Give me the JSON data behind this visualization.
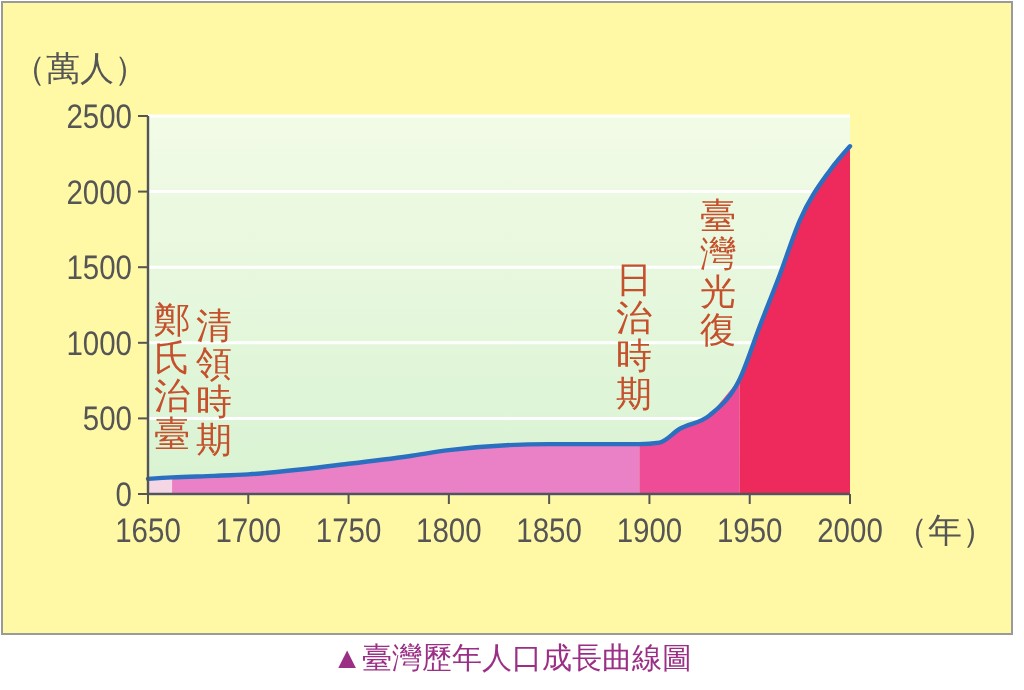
{
  "chart_data": {
    "type": "area",
    "title": "▲臺灣歷年人口成長曲線圖",
    "xlabel": "（年）",
    "ylabel": "（萬人）",
    "xlim": [
      1650,
      2000
    ],
    "xticks": [
      1650,
      1700,
      1750,
      1800,
      1850,
      1900,
      1950,
      2000
    ],
    "ylim": [
      0,
      2500
    ],
    "yticks": [
      0,
      500,
      1000,
      1500,
      2000,
      2500
    ],
    "grid": "y",
    "series": [
      {
        "color": "#f4d6e4",
        "x": [
          1650,
          1662
        ],
        "values": [
          100,
          110
        ]
      },
      {
        "color": "#ea80c6",
        "x": [
          1662,
          1683,
          1700,
          1750,
          1780,
          1800,
          1850,
          1895
        ],
        "values": [
          110,
          120,
          130,
          200,
          250,
          290,
          330,
          330
        ]
      },
      {
        "color": "#ee4c96",
        "x": [
          1895,
          1905,
          1915,
          1930,
          1945
        ],
        "values": [
          330,
          340,
          430,
          520,
          760
        ]
      },
      {
        "color": "#ee2a5c",
        "x": [
          1945,
          1955,
          1965,
          1975,
          1990,
          2000
        ],
        "values": [
          760,
          1110,
          1450,
          1810,
          2140,
          2300
        ]
      },
      {
        "type": "line",
        "color": "#2a6fc0",
        "x": [
          1650,
          1662,
          1683,
          1700,
          1750,
          1780,
          1800,
          1850,
          1895,
          1905,
          1915,
          1930,
          1945,
          1955,
          1965,
          1975,
          1990,
          2000
        ],
        "values": [
          100,
          110,
          120,
          130,
          200,
          250,
          290,
          330,
          330,
          340,
          430,
          520,
          760,
          1110,
          1450,
          1810,
          2140,
          2300
        ]
      }
    ],
    "annotations": [
      "鄭氏治臺",
      "清領時期",
      "日治時期",
      "臺灣光復"
    ]
  }
}
